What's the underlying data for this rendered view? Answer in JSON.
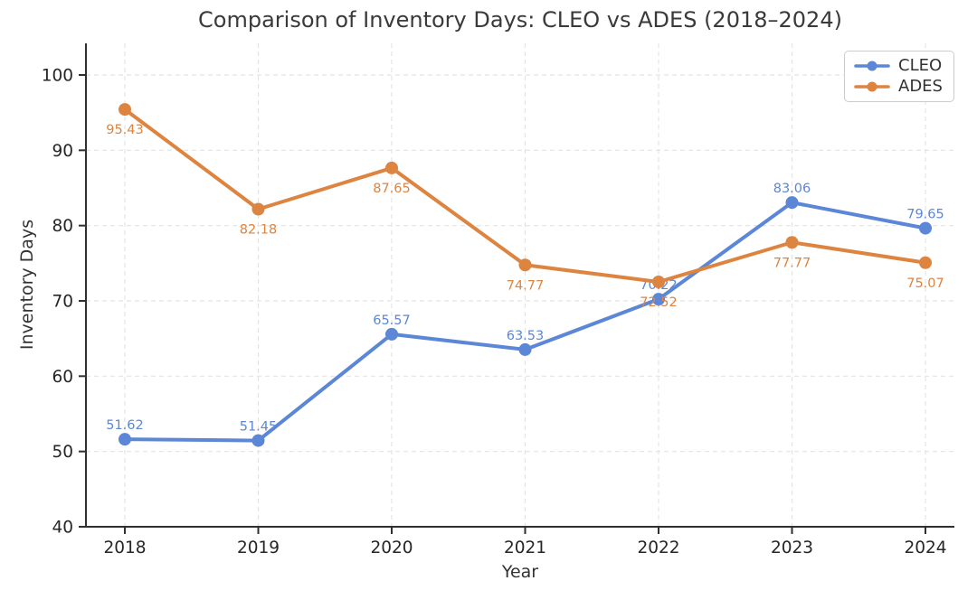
{
  "title": "Comparison of Inventory Days: CLEO vs ADES (2018–2024)",
  "axes": {
    "xlabel": "Year",
    "ylabel": "Inventory Days"
  },
  "legend": {
    "items": [
      "CLEO",
      "ADES"
    ]
  },
  "colors": {
    "cleo_blue": "#5b87d6",
    "ades_orange": "#dd8440",
    "grid": "#e4e4e4",
    "spine": "#2f2f2f",
    "tick_label": "#262626",
    "title_text": "#3a3a3a"
  },
  "chart_data": {
    "type": "line",
    "title": "Comparison of Inventory Days: CLEO vs ADES (2018–2024)",
    "xlabel": "Year",
    "ylabel": "Inventory Days",
    "categories": [
      "2018",
      "2019",
      "2020",
      "2021",
      "2022",
      "2023",
      "2024"
    ],
    "series": [
      {
        "name": "CLEO",
        "color": "#5b87d6",
        "values": [
          51.62,
          51.45,
          65.57,
          63.53,
          70.22,
          83.06,
          79.65
        ],
        "label_position": "above",
        "marker": "circle"
      },
      {
        "name": "ADES",
        "color": "#dd8440",
        "values": [
          95.43,
          82.18,
          87.65,
          74.77,
          72.52,
          77.77,
          75.07
        ],
        "label_position": "below",
        "marker": "circle"
      }
    ],
    "ylim": [
      40,
      104.2
    ],
    "yticks": [
      40,
      50,
      60,
      70,
      80,
      90,
      100
    ],
    "grid": "dashed both axes",
    "legend_position": "upper right",
    "point_labels_shown": true
  }
}
